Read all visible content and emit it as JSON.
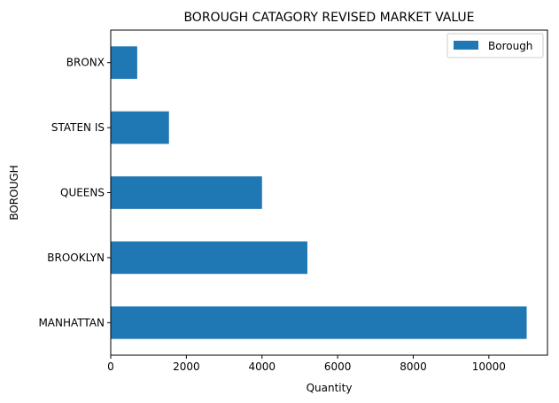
{
  "chart_data": {
    "type": "bar",
    "orientation": "horizontal",
    "title": "BOROUGH CATAGORY REVISED MARKET VALUE",
    "xlabel": "Quantity",
    "ylabel": "BOROUGH",
    "categories": [
      "MANHATTAN",
      "BROOKLYN",
      "QUEENS",
      "STATEN IS",
      "BRONX"
    ],
    "series": [
      {
        "name": "Borough",
        "values": [
          11000,
          5200,
          4000,
          1540,
          700
        ]
      }
    ],
    "xlim": [
      0,
      11550
    ],
    "xticks": [
      0,
      2000,
      4000,
      6000,
      8000,
      10000
    ],
    "xtick_labels": [
      "0",
      "2000",
      "4000",
      "6000",
      "8000",
      "10000"
    ],
    "grid": false,
    "legend": "top-right",
    "colors": {
      "bar": "#1f77b4"
    }
  }
}
